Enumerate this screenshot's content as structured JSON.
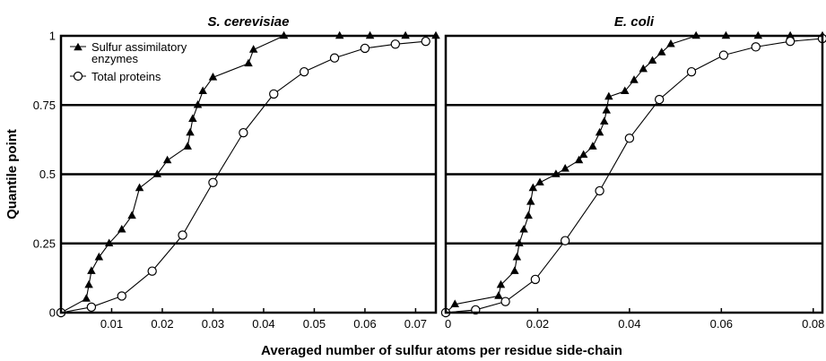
{
  "chart_data": [
    {
      "type": "line",
      "title": "S. cerevisiae",
      "xlabel": "Averaged number of sulfur atoms per residue side-chain",
      "ylabel": "Quantile point",
      "xlim": [
        0,
        0.074
      ],
      "ylim": [
        0,
        1
      ],
      "x_ticks": [
        "0.01",
        "0.02",
        "0.03",
        "0.04",
        "0.05",
        "0.06",
        "0.07"
      ],
      "y_ticks": [
        "0",
        "0.25",
        "0.5",
        "0.75",
        "1"
      ],
      "grid": "horizontal",
      "legend": "top-left",
      "series": [
        {
          "name": "Sulfur assimilatory enzymes",
          "marker": "filled-triangle",
          "step": true,
          "points": [
            [
              0.0,
              0.0
            ],
            [
              0.005,
              0.05
            ],
            [
              0.0055,
              0.1
            ],
            [
              0.006,
              0.15
            ],
            [
              0.0075,
              0.2
            ],
            [
              0.0095,
              0.25
            ],
            [
              0.012,
              0.3
            ],
            [
              0.014,
              0.35
            ],
            [
              0.0155,
              0.45
            ],
            [
              0.019,
              0.5
            ],
            [
              0.021,
              0.55
            ],
            [
              0.025,
              0.6
            ],
            [
              0.0255,
              0.65
            ],
            [
              0.026,
              0.7
            ],
            [
              0.027,
              0.75
            ],
            [
              0.028,
              0.8
            ],
            [
              0.03,
              0.85
            ],
            [
              0.037,
              0.9
            ],
            [
              0.038,
              0.95
            ],
            [
              0.044,
              1.0
            ],
            [
              0.055,
              1.0
            ],
            [
              0.061,
              1.0
            ],
            [
              0.068,
              1.0
            ],
            [
              0.074,
              1.0
            ]
          ]
        },
        {
          "name": "Total proteins",
          "marker": "open-circle",
          "step": false,
          "points": [
            [
              0.0,
              0.0
            ],
            [
              0.006,
              0.02
            ],
            [
              0.012,
              0.06
            ],
            [
              0.018,
              0.15
            ],
            [
              0.024,
              0.28
            ],
            [
              0.03,
              0.47
            ],
            [
              0.036,
              0.65
            ],
            [
              0.042,
              0.79
            ],
            [
              0.048,
              0.87
            ],
            [
              0.054,
              0.92
            ],
            [
              0.06,
              0.955
            ],
            [
              0.066,
              0.97
            ],
            [
              0.072,
              0.98
            ]
          ]
        }
      ]
    },
    {
      "type": "line",
      "title": "E. coli",
      "xlabel": "Averaged number of sulfur atoms per residue side-chain",
      "ylabel": "Quantile point",
      "xlim": [
        0,
        0.082
      ],
      "ylim": [
        0,
        1
      ],
      "x_ticks": [
        "0",
        "0.02",
        "0.04",
        "0.06",
        "0.08"
      ],
      "y_ticks": [
        "0",
        "0.25",
        "0.5",
        "0.75",
        "1"
      ],
      "grid": "horizontal",
      "series": [
        {
          "name": "Sulfur assimilatory enzymes",
          "marker": "filled-triangle",
          "step": true,
          "points": [
            [
              0.0,
              0.0
            ],
            [
              0.002,
              0.03
            ],
            [
              0.0115,
              0.06
            ],
            [
              0.012,
              0.1
            ],
            [
              0.015,
              0.15
            ],
            [
              0.0155,
              0.2
            ],
            [
              0.016,
              0.25
            ],
            [
              0.017,
              0.3
            ],
            [
              0.018,
              0.35
            ],
            [
              0.0185,
              0.4
            ],
            [
              0.019,
              0.45
            ],
            [
              0.0205,
              0.47
            ],
            [
              0.024,
              0.5
            ],
            [
              0.026,
              0.52
            ],
            [
              0.029,
              0.55
            ],
            [
              0.03,
              0.57
            ],
            [
              0.032,
              0.6
            ],
            [
              0.0335,
              0.65
            ],
            [
              0.0345,
              0.69
            ],
            [
              0.035,
              0.73
            ],
            [
              0.0355,
              0.78
            ],
            [
              0.039,
              0.8
            ],
            [
              0.041,
              0.84
            ],
            [
              0.043,
              0.88
            ],
            [
              0.045,
              0.91
            ],
            [
              0.047,
              0.94
            ],
            [
              0.049,
              0.97
            ],
            [
              0.0545,
              1.0
            ],
            [
              0.061,
              1.0
            ],
            [
              0.068,
              1.0
            ],
            [
              0.075,
              1.0
            ],
            [
              0.082,
              1.0
            ]
          ]
        },
        {
          "name": "Total proteins",
          "marker": "open-circle",
          "step": false,
          "points": [
            [
              0.0,
              0.0
            ],
            [
              0.0065,
              0.01
            ],
            [
              0.013,
              0.04
            ],
            [
              0.0195,
              0.12
            ],
            [
              0.026,
              0.26
            ],
            [
              0.0335,
              0.44
            ],
            [
              0.04,
              0.63
            ],
            [
              0.0465,
              0.77
            ],
            [
              0.0535,
              0.87
            ],
            [
              0.0605,
              0.93
            ],
            [
              0.0675,
              0.96
            ],
            [
              0.075,
              0.98
            ],
            [
              0.082,
              0.99
            ]
          ]
        }
      ]
    }
  ]
}
